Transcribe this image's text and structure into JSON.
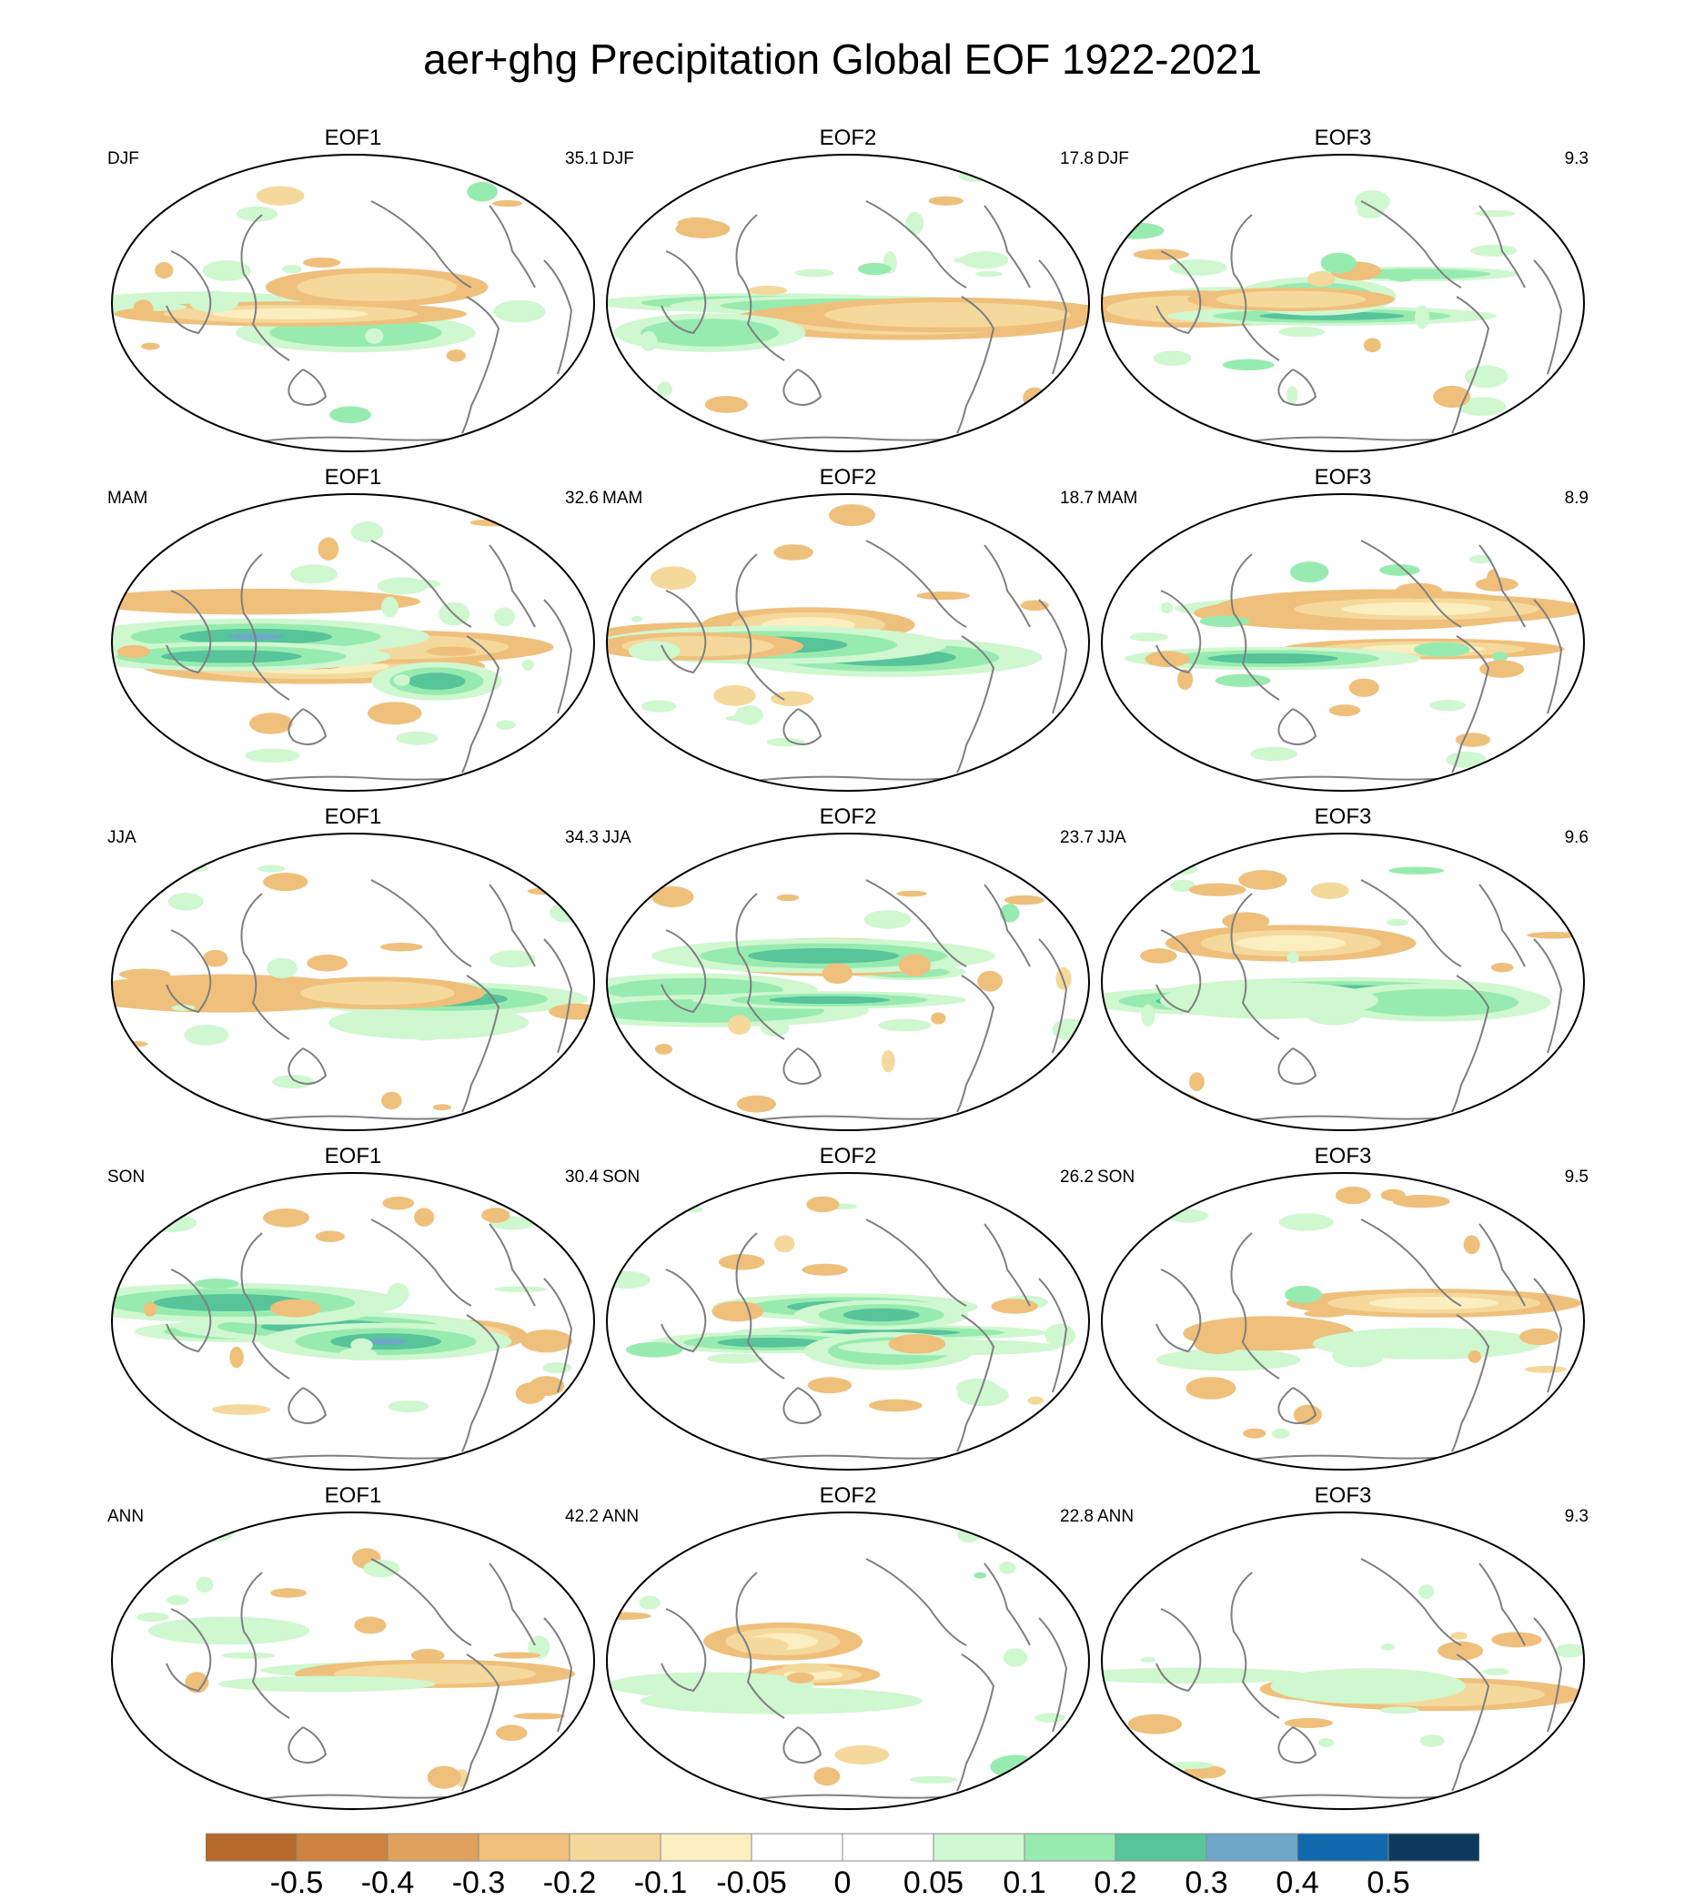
{
  "title": "aer+ghg Precipitation Global EOF 1922-2021",
  "chart_data": {
    "type": "heatmap",
    "title": "aer+ghg Precipitation Global EOF 1922-2021",
    "projection": "Robinson, Pacific-centered",
    "panels": [
      {
        "season": "DJF",
        "eof": "EOF1",
        "variance_pct": "35.1"
      },
      {
        "season": "DJF",
        "eof": "EOF2",
        "variance_pct": "17.8"
      },
      {
        "season": "DJF",
        "eof": "EOF3",
        "variance_pct": "9.3"
      },
      {
        "season": "MAM",
        "eof": "EOF1",
        "variance_pct": "32.6"
      },
      {
        "season": "MAM",
        "eof": "EOF2",
        "variance_pct": "18.7"
      },
      {
        "season": "MAM",
        "eof": "EOF3",
        "variance_pct": "8.9"
      },
      {
        "season": "JJA",
        "eof": "EOF1",
        "variance_pct": "34.3"
      },
      {
        "season": "JJA",
        "eof": "EOF2",
        "variance_pct": "23.7"
      },
      {
        "season": "JJA",
        "eof": "EOF3",
        "variance_pct": "9.6"
      },
      {
        "season": "SON",
        "eof": "EOF1",
        "variance_pct": "30.4"
      },
      {
        "season": "SON",
        "eof": "EOF2",
        "variance_pct": "26.2"
      },
      {
        "season": "SON",
        "eof": "EOF3",
        "variance_pct": "9.5"
      },
      {
        "season": "ANN",
        "eof": "EOF1",
        "variance_pct": "42.2"
      },
      {
        "season": "ANN",
        "eof": "EOF2",
        "variance_pct": "22.8"
      },
      {
        "season": "ANN",
        "eof": "EOF3",
        "variance_pct": "9.3"
      }
    ],
    "colorbar": {
      "labels": [
        "-0.5",
        "-0.4",
        "-0.3",
        "-0.2",
        "-0.1",
        "-0.05",
        "0",
        "0.05",
        "0.1",
        "0.2",
        "0.3",
        "0.4",
        "0.5"
      ],
      "colors": [
        "#b5692a",
        "#cc843f",
        "#dfa25e",
        "#efc07c",
        "#f5d99c",
        "#fbeebf",
        "#ffffff",
        "#ffffff",
        "#cff7d0",
        "#98ebb0",
        "#57c49a",
        "#6ea7c8",
        "#1168ad",
        "#0b3a5c"
      ]
    }
  }
}
